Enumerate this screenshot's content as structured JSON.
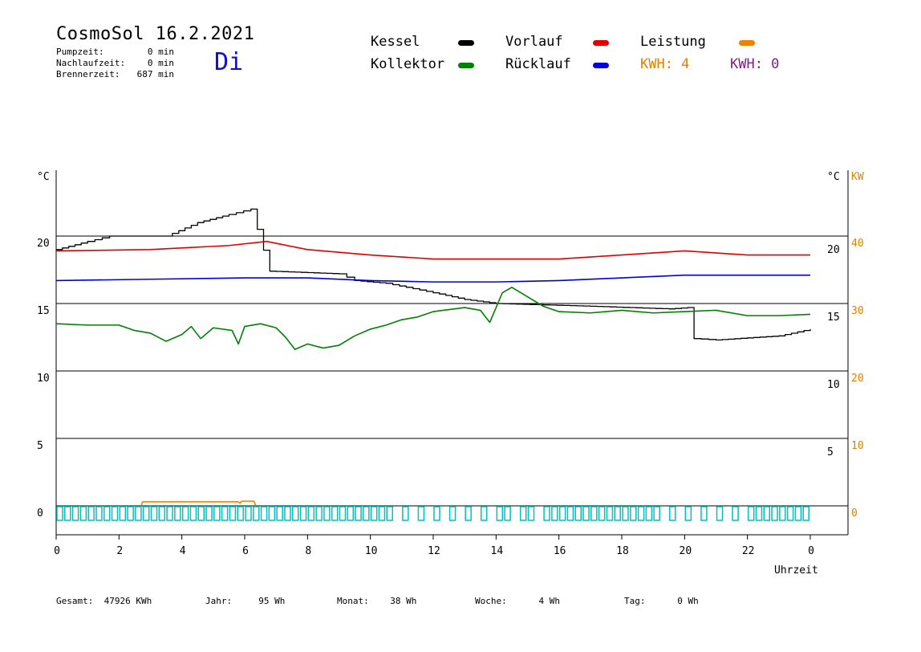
{
  "header": {
    "title": "CosmoSol 16.2.2021",
    "day": "Di",
    "stats": [
      {
        "label": "Pumpzeit:",
        "value": "0 min"
      },
      {
        "label": "Nachlaufzeit:",
        "value": "0 min"
      },
      {
        "label": "Brennerzeit:",
        "value": "687 min"
      }
    ]
  },
  "legend": {
    "items": [
      {
        "label": "Kessel",
        "color": "#000000"
      },
      {
        "label": "Kollektor",
        "color": "#008000"
      },
      {
        "label": "Vorlauf",
        "color": "#e00000"
      },
      {
        "label": "Rücklauf",
        "color": "#0000e0"
      },
      {
        "label": "Leistung",
        "color": "#f08000"
      }
    ],
    "kwh1": {
      "text": "KWH: 4",
      "color": "#e08000"
    },
    "kwh2": {
      "text": "KWH: 0",
      "color": "#802080"
    }
  },
  "footer": [
    {
      "label": "Gesamt:",
      "value": "47926 KWh"
    },
    {
      "label": "Jahr:",
      "value": "95 Wh"
    },
    {
      "label": "Monat:",
      "value": "38 Wh"
    },
    {
      "label": "Woche:",
      "value": "4 Wh"
    },
    {
      "label": "Tag:",
      "value": "0 Wh"
    }
  ],
  "chart_data": {
    "type": "line",
    "xlabel": "Uhrzeit",
    "x_ticks": [
      "0",
      "2",
      "4",
      "6",
      "8",
      "10",
      "12",
      "14",
      "16",
      "18",
      "20",
      "22",
      "0"
    ],
    "xlim": [
      0,
      24
    ],
    "y_left": {
      "unit": "°C",
      "ticks": [
        0,
        5,
        10,
        15,
        20
      ],
      "range": [
        0,
        25
      ]
    },
    "y_right_temp": {
      "unit": "°C",
      "ticks": [
        5,
        10,
        15,
        20
      ]
    },
    "y_right_power": {
      "unit": "KW",
      "ticks": [
        0,
        10,
        20,
        30,
        40
      ]
    },
    "series": [
      {
        "name": "Kessel",
        "color": "#000000",
        "points": [
          [
            0,
            19
          ],
          [
            1,
            19.6
          ],
          [
            1.7,
            20
          ],
          [
            3.5,
            20
          ],
          [
            4.5,
            21
          ],
          [
            5.5,
            21.6
          ],
          [
            6.2,
            22
          ],
          [
            6.4,
            20.5
          ],
          [
            6.8,
            17.4
          ],
          [
            9,
            17.2
          ],
          [
            9.5,
            16.7
          ],
          [
            10.5,
            16.5
          ],
          [
            12,
            15.8
          ],
          [
            13,
            15.3
          ],
          [
            14,
            15
          ],
          [
            15.5,
            14.9
          ],
          [
            17,
            14.8
          ],
          [
            19.5,
            14.6
          ],
          [
            20.1,
            14.7
          ],
          [
            20.3,
            12.4
          ],
          [
            21,
            12.3
          ],
          [
            23,
            12.6
          ],
          [
            24,
            13.1
          ]
        ]
      },
      {
        "name": "Vorlauf",
        "color": "#e00000",
        "points": [
          [
            0,
            18.9
          ],
          [
            3,
            19
          ],
          [
            5.5,
            19.3
          ],
          [
            6.7,
            19.6
          ],
          [
            8,
            19
          ],
          [
            10,
            18.6
          ],
          [
            12,
            18.3
          ],
          [
            14,
            18.3
          ],
          [
            16,
            18.3
          ],
          [
            18,
            18.6
          ],
          [
            20,
            18.9
          ],
          [
            22,
            18.6
          ],
          [
            24,
            18.6
          ]
        ]
      },
      {
        "name": "Rücklauf",
        "color": "#0000e0",
        "points": [
          [
            0,
            16.7
          ],
          [
            3,
            16.8
          ],
          [
            6,
            16.9
          ],
          [
            8,
            16.9
          ],
          [
            10,
            16.7
          ],
          [
            12,
            16.6
          ],
          [
            14,
            16.6
          ],
          [
            16,
            16.7
          ],
          [
            18,
            16.9
          ],
          [
            20,
            17.1
          ],
          [
            22,
            17.1
          ],
          [
            24,
            17.1
          ]
        ]
      },
      {
        "name": "Kollektor",
        "color": "#008000",
        "points": [
          [
            0,
            13.5
          ],
          [
            1,
            13.4
          ],
          [
            2,
            13.4
          ],
          [
            2.5,
            13
          ],
          [
            3,
            12.8
          ],
          [
            3.5,
            12.2
          ],
          [
            4,
            12.7
          ],
          [
            4.3,
            13.3
          ],
          [
            4.6,
            12.4
          ],
          [
            5,
            13.2
          ],
          [
            5.6,
            13
          ],
          [
            5.8,
            12
          ],
          [
            6,
            13.3
          ],
          [
            6.5,
            13.5
          ],
          [
            7,
            13.2
          ],
          [
            7.3,
            12.5
          ],
          [
            7.6,
            11.6
          ],
          [
            8,
            12
          ],
          [
            8.5,
            11.7
          ],
          [
            9,
            11.9
          ],
          [
            9.5,
            12.6
          ],
          [
            10,
            13.1
          ],
          [
            10.5,
            13.4
          ],
          [
            11,
            13.8
          ],
          [
            11.5,
            14
          ],
          [
            12,
            14.4
          ],
          [
            13,
            14.7
          ],
          [
            13.5,
            14.5
          ],
          [
            13.8,
            13.6
          ],
          [
            14.2,
            15.8
          ],
          [
            14.5,
            16.2
          ],
          [
            15,
            15.5
          ],
          [
            15.5,
            14.8
          ],
          [
            16,
            14.4
          ],
          [
            17,
            14.3
          ],
          [
            18,
            14.5
          ],
          [
            19,
            14.3
          ],
          [
            20,
            14.4
          ],
          [
            21,
            14.5
          ],
          [
            22,
            14.1
          ],
          [
            23,
            14.1
          ],
          [
            24,
            14.2
          ]
        ]
      },
      {
        "name": "Leistung",
        "color": "#f08000",
        "unit": "KW",
        "points": [
          [
            2.7,
            0
          ],
          [
            2.75,
            0.6
          ],
          [
            5.8,
            0.6
          ],
          [
            5.85,
            0.4
          ],
          [
            5.9,
            0.7
          ],
          [
            6.3,
            0.7
          ],
          [
            6.35,
            0
          ]
        ]
      }
    ],
    "pump_markers": {
      "color": "#00c0c0",
      "hours": [
        0,
        0.25,
        0.5,
        0.75,
        1,
        1.25,
        1.5,
        1.75,
        2,
        2.25,
        2.5,
        2.75,
        3,
        3.25,
        3.5,
        3.75,
        4,
        4.25,
        4.5,
        4.75,
        5,
        5.25,
        5.5,
        5.75,
        6,
        6.25,
        6.5,
        6.75,
        7,
        7.25,
        7.5,
        7.75,
        8,
        8.25,
        8.5,
        8.75,
        9,
        9.25,
        9.5,
        9.75,
        10,
        10.25,
        10.5,
        11,
        11.5,
        12,
        12.5,
        13,
        13.5,
        14,
        14.25,
        14.75,
        15,
        15.5,
        15.75,
        16,
        16.25,
        16.5,
        16.75,
        17,
        17.25,
        17.5,
        17.75,
        18,
        18.25,
        18.5,
        18.75,
        19,
        19.5,
        20,
        20.5,
        21,
        21.5,
        22,
        22.25,
        22.5,
        22.75,
        23,
        23.25,
        23.5,
        23.75
      ]
    }
  }
}
